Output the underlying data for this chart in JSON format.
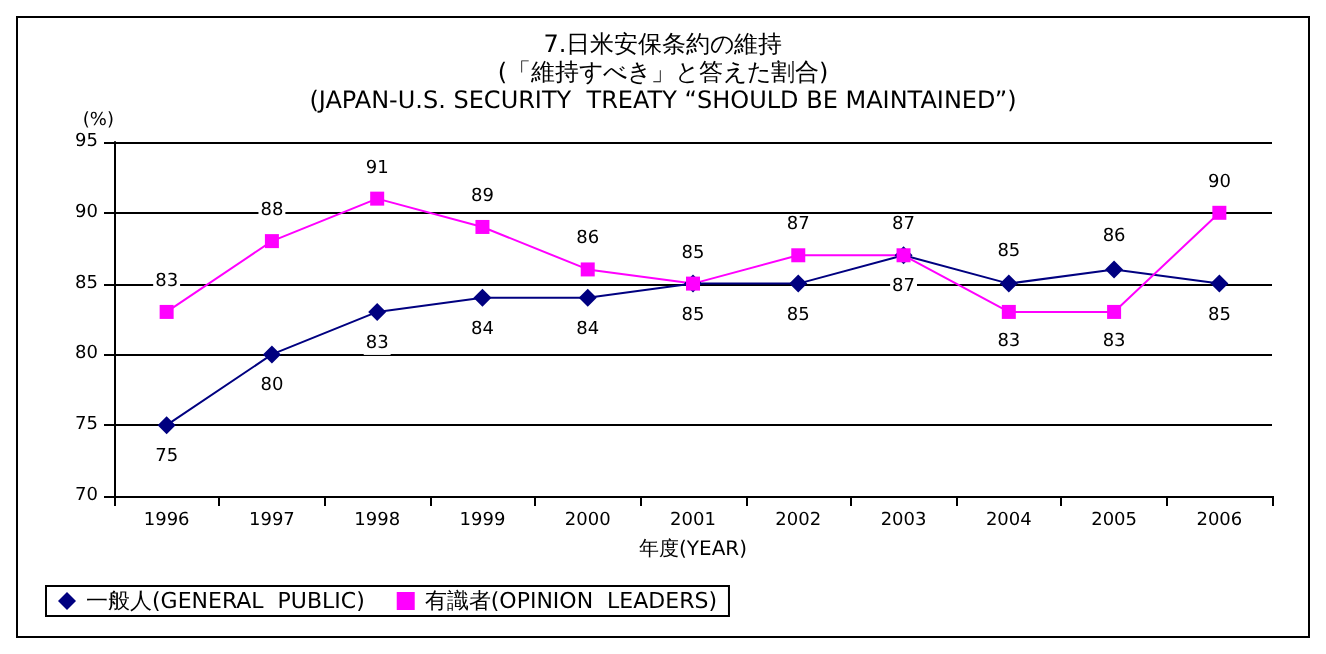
{
  "chart_data": {
    "type": "line",
    "title": "7.日米安保条約の維持",
    "subtitle": "(「維持すべき」と答えた割合)\n(JAPAN-U.S. SECURITY  TREATY “SHOULD BE MAINTAINED”)",
    "xlabel": "年度(YEAR)",
    "ylabel": "(%)",
    "categories": [
      "1996",
      "1997",
      "1998",
      "1999",
      "2000",
      "2001",
      "2002",
      "2003",
      "2004",
      "2005",
      "2006"
    ],
    "series": [
      {
        "name": "一般人(GENERAL  PUBLIC)",
        "color": "#000080",
        "marker": "diamond",
        "values": [
          75,
          80,
          83,
          84,
          84,
          85,
          85,
          87,
          85,
          86,
          85
        ]
      },
      {
        "name": "有識者(OPINION  LEADERS)",
        "color": "#ff00ff",
        "marker": "square",
        "values": [
          83,
          88,
          91,
          89,
          86,
          85,
          87,
          87,
          83,
          83,
          90
        ]
      }
    ],
    "ylim": [
      70,
      95
    ],
    "yticks": [
      70,
      75,
      80,
      85,
      90,
      95
    ],
    "grid": "y",
    "legend": "bottom left",
    "data_labels": true,
    "line_style": "solid"
  }
}
